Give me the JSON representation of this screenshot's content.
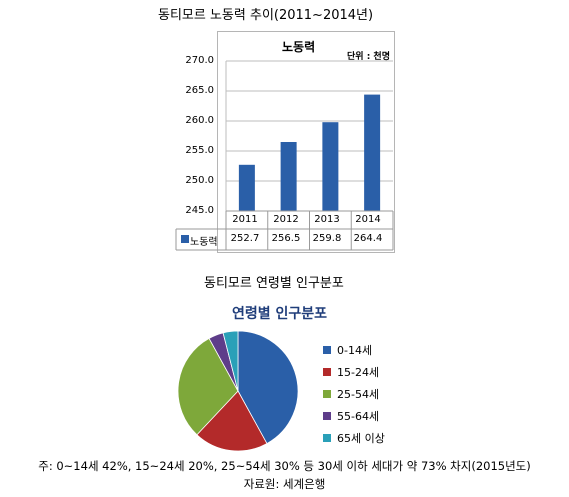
{
  "top_caption": "동티모르 노동력 추이(2011~2014년)",
  "middle_caption": "동티모르 연령별 인구분포",
  "footer_note": "주: 0~14세 42%, 15~24세 20%, 25~54세 30% 등 30세 이하 세대가 약 73% 차지(2015년도)",
  "footer_source": "자료원: 세계은행",
  "chart_data": [
    {
      "type": "bar",
      "title": "노동력",
      "unit_label": "단위 : 천명",
      "categories": [
        "2011",
        "2012",
        "2013",
        "2014"
      ],
      "series": [
        {
          "name": "노동력",
          "values": [
            252.7,
            256.5,
            259.8,
            264.4
          ],
          "value_labels": [
            "252.7",
            "256.5",
            "259.8",
            "264.4"
          ]
        }
      ],
      "ylim": [
        245.0,
        270.0
      ],
      "yticks": [
        "270.0",
        "265.0",
        "260.0",
        "255.0",
        "250.0",
        "245.0"
      ],
      "ytick_values": [
        270,
        265,
        260,
        255,
        250,
        245
      ],
      "grid": true,
      "data_table": true,
      "bar_color": "#2a5fa8"
    },
    {
      "type": "pie",
      "title": "연령별 인구분포",
      "labels": [
        "0-14세",
        "15-24세",
        "25-54세",
        "55-64세",
        "65세 이상"
      ],
      "values": [
        42,
        20,
        30,
        4,
        4
      ],
      "colors": [
        "#2a5fa8",
        "#b32a2a",
        "#7ea83a",
        "#5e3d8a",
        "#2aa0b8"
      ],
      "legend_position": "right"
    }
  ]
}
